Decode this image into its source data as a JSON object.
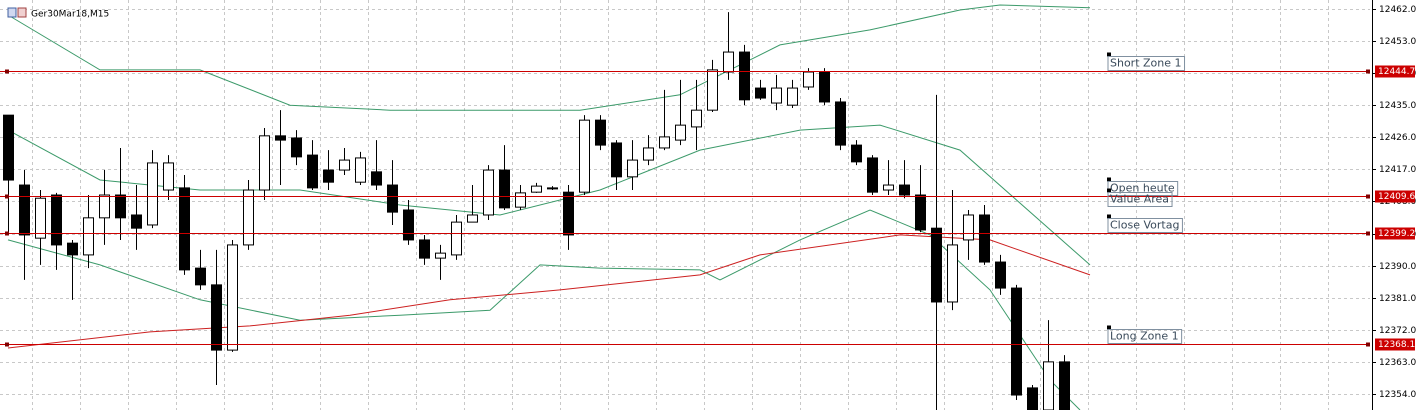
{
  "chart_data": {
    "type": "candlestick",
    "title": "Ger30Mar18,M15",
    "xlim": [
      -0.5,
      85.125
    ],
    "ylim": [
      12349.5,
      12464.5
    ],
    "grid": true,
    "up_color": "#ffffff",
    "down_color": "#000000",
    "outline_color": "#000000",
    "yticks": [
      {
        "value": 12462,
        "label": "12462.0"
      },
      {
        "value": 12453,
        "label": "12453.0"
      },
      {
        "value": 12444,
        "label": "12444.0"
      },
      {
        "value": 12435,
        "label": "12435.0"
      },
      {
        "value": 12426,
        "label": "12426.0"
      },
      {
        "value": 12417,
        "label": "12417.0"
      },
      {
        "value": 12408,
        "label": "12408.0"
      },
      {
        "value": 12399,
        "label": "12399.0"
      },
      {
        "value": 12390,
        "label": "12390.0"
      },
      {
        "value": 12381,
        "label": "12381.0"
      },
      {
        "value": 12372,
        "label": "12372.0"
      },
      {
        "value": 12363,
        "label": "12363.0"
      },
      {
        "value": 12354,
        "label": "12354.0"
      }
    ],
    "open": [
      12432.2,
      12412.6,
      12397.7,
      12409.8,
      12396.3,
      12393.0,
      12403.4,
      12409.8,
      12404.2,
      12401.4,
      12411.2,
      12411.8,
      12389.3,
      12384.6,
      12366.3,
      12395.8,
      12411.2,
      12426.4,
      12425.8,
      12421.0,
      12416.8,
      12416.8,
      12413.4,
      12416.3,
      12412.6,
      12405.6,
      12397.2,
      12392.1,
      12393.0,
      12402.2,
      12404.2,
      12416.8,
      12406.4,
      12410.6,
      12411.8,
      12410.6,
      12410.6,
      12430.8,
      12424.4,
      12414.9,
      12419.6,
      12423.0,
      12425.2,
      12428.9,
      12433.6,
      12444.3,
      12449.9,
      12439.8,
      12435.6,
      12435.0,
      12440.1,
      12444.3,
      12435.9,
      12423.8,
      12420.2,
      12411.2,
      12412.6,
      12409.8,
      12400.5,
      12379.8,
      12397.2,
      12404.2,
      12391.0,
      12383.7,
      12355.7,
      12349.5,
      12363.0
    ],
    "high": [
      12432.2,
      12416.8,
      12411.2,
      12410.4,
      12397.2,
      12409.8,
      12416.8,
      12423.0,
      12412.6,
      12422.4,
      12421.0,
      12415.4,
      12394.4,
      12394.4,
      12397.2,
      12414.0,
      12428.6,
      12433.6,
      12428.0,
      12425.2,
      12422.4,
      12423.0,
      12421.9,
      12425.2,
      12419.6,
      12408.4,
      12398.6,
      12395.8,
      12404.2,
      12412.6,
      12418.2,
      12423.8,
      12412.6,
      12413.2,
      12412.3,
      12412.6,
      12432.2,
      12432.2,
      12425.2,
      12425.2,
      12426.6,
      12439.3,
      12442.1,
      12442.1,
      12447.7,
      12461.1,
      12451.9,
      12442.1,
      12443.5,
      12442.1,
      12445.4,
      12445.4,
      12437.0,
      12425.2,
      12421.0,
      12419.6,
      12419.6,
      12418.2,
      12437.9,
      12411.2,
      12405.6,
      12407.0,
      12393.0,
      12384.6,
      12356.5,
      12374.7,
      12364.9
    ],
    "low": [
      12398.6,
      12386.0,
      12390.2,
      12388.8,
      12380.4,
      12389.3,
      12395.8,
      12397.2,
      12394.4,
      12400.5,
      12408.4,
      12387.4,
      12383.2,
      12356.5,
      12365.8,
      12394.4,
      12408.4,
      12412.6,
      12418.2,
      12411.2,
      12411.2,
      12415.4,
      12412.6,
      12411.2,
      12401.4,
      12395.8,
      12390.2,
      12386.0,
      12391.6,
      12402.2,
      12402.8,
      12405.6,
      12405.6,
      12410.4,
      12411.2,
      12394.4,
      12409.8,
      12422.4,
      12411.2,
      12411.2,
      12418.2,
      12422.4,
      12423.8,
      12422.4,
      12433.1,
      12442.1,
      12435.0,
      12436.5,
      12433.6,
      12434.2,
      12439.3,
      12435.0,
      12422.4,
      12418.2,
      12409.8,
      12409.8,
      12408.9,
      12399.4,
      12349.5,
      12377.5,
      12391.6,
      12390.2,
      12381.8,
      12352.3,
      12349.5,
      12349.5,
      12349.5
    ],
    "close": [
      12414.0,
      12398.6,
      12408.9,
      12395.8,
      12393.0,
      12403.4,
      12409.8,
      12403.4,
      12400.5,
      12418.8,
      12418.8,
      12388.8,
      12384.6,
      12366.3,
      12395.8,
      12411.2,
      12426.4,
      12425.2,
      12420.5,
      12411.8,
      12413.4,
      12419.6,
      12420.2,
      12412.6,
      12405.0,
      12397.2,
      12392.1,
      12393.5,
      12402.2,
      12404.2,
      12416.8,
      12406.2,
      12410.4,
      12412.3,
      12411.8,
      12398.6,
      12430.8,
      12423.8,
      12414.9,
      12419.6,
      12423.0,
      12426.1,
      12429.4,
      12433.6,
      12444.9,
      12449.9,
      12436.5,
      12437.0,
      12439.8,
      12439.8,
      12444.3,
      12435.9,
      12423.8,
      12419.1,
      12410.6,
      12412.6,
      12409.8,
      12400.0,
      12379.8,
      12395.8,
      12404.2,
      12391.0,
      12383.7,
      12353.7,
      12349.5,
      12363.0,
      12349.5
    ],
    "lines": [
      {
        "color": "#3c9a6a",
        "x": [
          0,
          5.75,
          12,
          17.625,
          23.875,
          30.75,
          35.75,
          42,
          48.25,
          53.875,
          59.5,
          62,
          67.625
        ],
        "values": [
          12460.3,
          12444.9,
          12444.9,
          12435.0,
          12433.6,
          12433.6,
          12433.6,
          12437.9,
          12451.9,
          12456.1,
          12461.7,
          12463.1,
          12462.3
        ]
      },
      {
        "color": "#3c9a6a",
        "x": [
          0,
          5.75,
          12,
          18.25,
          24.5,
          30.75,
          37,
          43.25,
          49.5,
          54.5,
          59.5,
          67.625
        ],
        "values": [
          12428.0,
          12414.0,
          12411.2,
          12411.2,
          12407.0,
          12404.2,
          12411.2,
          12422.4,
          12428.0,
          12429.4,
          12422.4,
          12390.2
        ]
      },
      {
        "color": "#3c9a6a",
        "x": [
          0,
          5.75,
          12,
          18.25,
          24.5,
          30.125,
          33.25,
          37,
          43.25,
          44.5,
          49.5,
          53.875,
          57.625,
          61.375,
          65.125,
          67
        ],
        "values": [
          12397.2,
          12390.2,
          12380.4,
          12374.7,
          12376.1,
          12377.5,
          12390.2,
          12389.3,
          12388.8,
          12386.0,
          12397.2,
          12405.6,
          12398.6,
          12383.2,
          12357.9,
          12349.5
        ]
      },
      {
        "color": "#cc2020",
        "x": [
          0,
          8.875,
          15.125,
          21.375,
          27.625,
          34.5,
          43.25,
          47,
          55.75,
          61.375,
          67.625
        ],
        "values": [
          12366.9,
          12371.4,
          12373.1,
          12376.1,
          12380.4,
          12383.2,
          12387.4,
          12393.0,
          12398.6,
          12397.2,
          12387.4
        ]
      }
    ],
    "levels": [
      {
        "label": "Short Zone 1",
        "value": 12444.7,
        "line": true,
        "color": "#cc0000"
      },
      {
        "label": "Open heute",
        "value": 12409.6,
        "line": true,
        "color": "#cc0000"
      },
      {
        "label": "Value Area",
        "value": 12406.4,
        "line": false,
        "color": "#cc0000"
      },
      {
        "label": "Close Vortag",
        "value": 12399.2,
        "line": true,
        "color": "#cc0000"
      },
      {
        "label": "Long Zone 1",
        "value": 12368.1,
        "line": true,
        "color": "#cc0000"
      }
    ]
  }
}
